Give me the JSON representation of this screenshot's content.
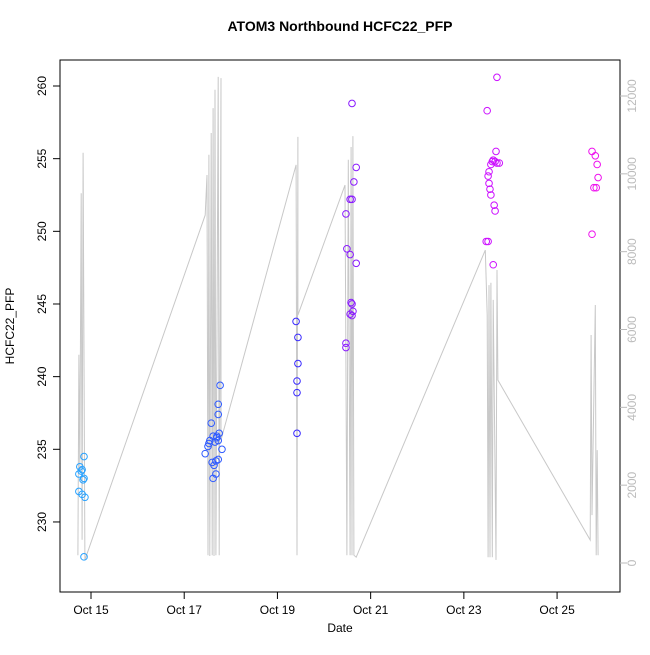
{
  "chart_data": {
    "type": "scatter",
    "title": "ATOM3 Northbound HCFC22_PFP",
    "xlabel": "Date",
    "ylabel": "HCFC22_PFP",
    "xlim": [
      14.335,
      26.35
    ],
    "ylim": [
      225.18,
      261.79
    ],
    "y2lim": [
      -745,
      12925
    ],
    "xticks": [
      {
        "value": 15,
        "label": "Oct 15"
      },
      {
        "value": 17,
        "label": "Oct 17"
      },
      {
        "value": 19,
        "label": "Oct 19"
      },
      {
        "value": 21,
        "label": "Oct 21"
      },
      {
        "value": 23,
        "label": "Oct 23"
      },
      {
        "value": 25,
        "label": "Oct 25"
      }
    ],
    "yticks": [
      230,
      235,
      240,
      245,
      250,
      255,
      260
    ],
    "y2ticks": [
      0,
      2000,
      4000,
      6000,
      8000,
      10000,
      12000
    ],
    "series": [
      {
        "color": "#2aa3ff",
        "x": [
          14.76,
          14.79,
          14.74,
          14.81,
          14.85,
          14.83,
          14.85,
          14.74,
          14.81,
          14.87,
          14.85
        ],
        "values": [
          233.8,
          233.5,
          233.3,
          233.6,
          234.5,
          232.9,
          233.0,
          232.1,
          231.9,
          231.7,
          227.6
        ]
      },
      {
        "color": "#2f5bff",
        "x": [
          17.45,
          17.51,
          17.55,
          17.53,
          17.62,
          17.58,
          17.66,
          17.7,
          17.6,
          17.64,
          17.68,
          17.73,
          17.62,
          17.68,
          17.7,
          17.73,
          17.75,
          17.73,
          17.73,
          17.77,
          17.81
        ],
        "values": [
          234.7,
          235.2,
          235.6,
          235.4,
          235.9,
          236.8,
          235.5,
          235.9,
          234.1,
          233.9,
          234.2,
          234.3,
          233.0,
          233.3,
          235.8,
          235.6,
          236.1,
          238.1,
          237.4,
          239.4,
          235.0
        ]
      },
      {
        "color": "#3a2bff",
        "x": [
          19.4,
          19.44,
          19.44,
          19.42,
          19.42,
          19.42
        ],
        "values": [
          243.8,
          242.7,
          240.9,
          239.7,
          238.9,
          236.1
        ]
      },
      {
        "color": "#8a1aff",
        "x": [
          20.6,
          20.69,
          20.64,
          20.56,
          20.6,
          20.47,
          20.49,
          20.56,
          20.69,
          20.58,
          20.6,
          20.62,
          20.6,
          20.47,
          20.47,
          20.56
        ],
        "values": [
          258.8,
          254.4,
          253.4,
          252.2,
          252.2,
          251.2,
          248.8,
          248.4,
          247.8,
          245.1,
          245.0,
          244.5,
          244.2,
          242.3,
          242.0,
          244.3
        ]
      },
      {
        "color": "#cc11ff",
        "x": [
          23.5,
          23.58,
          23.54,
          23.52,
          23.54,
          23.56,
          23.58,
          23.65,
          23.67,
          23.69,
          23.63,
          23.61,
          23.67,
          23.71,
          23.76,
          23.52,
          23.48,
          23.63,
          23.71
        ],
        "values": [
          258.3,
          254.6,
          254.1,
          253.8,
          253.3,
          252.9,
          252.5,
          251.8,
          251.4,
          255.5,
          254.9,
          254.8,
          254.8,
          254.7,
          254.7,
          249.3,
          249.3,
          247.7,
          260.6
        ]
      },
      {
        "color": "#ee11ee",
        "x": [
          25.75,
          25.82,
          25.86,
          25.88,
          25.84,
          25.79,
          25.75
        ],
        "values": [
          255.5,
          255.2,
          254.6,
          253.7,
          253.0,
          253.0,
          249.8
        ]
      },
      {
        "type": "line",
        "axis": "y2",
        "color": "#c8c8c8",
        "x": [
          14.72,
          14.74,
          14.76,
          14.79,
          14.81,
          14.83,
          14.87,
          17.45,
          17.49,
          17.51,
          17.53,
          17.55,
          17.58,
          17.6,
          17.62,
          17.64,
          17.66,
          17.68,
          17.73,
          17.75,
          17.79,
          17.79,
          19.4,
          19.42,
          19.44,
          19.44,
          20.45,
          20.49,
          20.52,
          20.56,
          20.58,
          20.6,
          20.62,
          20.64,
          20.69,
          23.46,
          23.5,
          23.52,
          23.54,
          23.56,
          23.58,
          23.61,
          23.63,
          23.65,
          23.69,
          23.71,
          23.73,
          25.71,
          25.73,
          25.75,
          25.82,
          25.84,
          25.86,
          25.88
        ],
        "values": [
          200,
          5350,
          2390,
          9500,
          600,
          10540,
          80,
          8940,
          9970,
          200,
          10490,
          180,
          11050,
          200,
          11690,
          180,
          12160,
          200,
          12490,
          200,
          12460,
          3160,
          10230,
          200,
          10950,
          6370,
          9710,
          200,
          10360,
          200,
          10690,
          200,
          10970,
          200,
          150,
          8040,
          6370,
          150,
          7140,
          150,
          7200,
          150,
          6760,
          4450,
          80,
          7530,
          4700,
          590,
          5860,
          1230,
          6630,
          200,
          2900,
          200
        ]
      }
    ]
  }
}
